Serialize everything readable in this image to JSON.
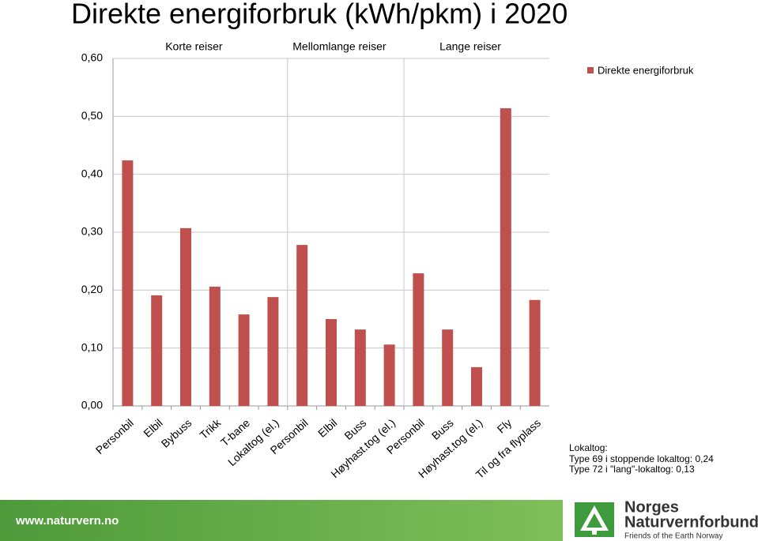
{
  "chart_data": {
    "type": "bar",
    "title": "Direkte energiforbruk (kWh/pkm) i 2020",
    "legend": {
      "label": "Direkte energiforbruk",
      "position": "top-right"
    },
    "color": "#c0504d",
    "grid": true,
    "ylim": [
      0,
      0.6
    ],
    "yticks": [
      {
        "value": 0,
        "label": "0,00"
      },
      {
        "value": 0.1,
        "label": "0,10"
      },
      {
        "value": 0.2,
        "label": "0,20"
      },
      {
        "value": 0.3,
        "label": "0,30"
      },
      {
        "value": 0.4,
        "label": "0,40"
      },
      {
        "value": 0.5,
        "label": "0,50"
      },
      {
        "value": 0.6,
        "label": "0,60"
      }
    ],
    "groups": [
      {
        "name": "Korte reiser",
        "categories": [
          "Personbil",
          "Elbil",
          "Bybuss",
          "Trikk",
          "T-bane",
          "Lokaltog (el.)"
        ],
        "values": [
          0.424,
          0.191,
          0.307,
          0.206,
          0.158,
          0.188
        ]
      },
      {
        "name": "Mellomlange reiser",
        "categories": [
          "Personbil",
          "Elbil",
          "Buss",
          "Høyhast.tog (el.)"
        ],
        "values": [
          0.278,
          0.15,
          0.132,
          0.106
        ]
      },
      {
        "name": "Lange reiser",
        "categories": [
          "Personbil",
          "Buss",
          "Høyhast.tog (el.)",
          "Fly",
          "Til og fra flyplass"
        ],
        "values": [
          0.229,
          0.132,
          0.067,
          0.514,
          0.183
        ]
      }
    ],
    "annotation": [
      "Lokaltog:",
      "Type 69 i stoppende lokaltog: 0,24",
      "Type 72 i \"lang\"-lokaltog: 0,13"
    ]
  },
  "footer": {
    "url": "www.naturvern.no",
    "org": [
      "Norges",
      "Naturvernforbund"
    ],
    "tagline": "Friends of the Earth Norway"
  }
}
